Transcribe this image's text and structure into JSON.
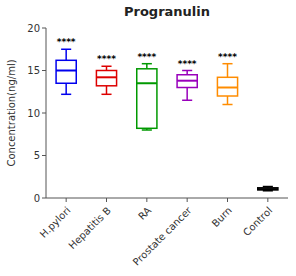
{
  "chart_data": {
    "type": "box",
    "title": "Progranulin",
    "ylabel": "Concentration(ng/ml)",
    "categories": [
      "H.pylori",
      "Hepatitis B",
      "RA",
      "Prostate cancer",
      "Burn",
      "Control"
    ],
    "colors": [
      "#0000EE",
      "#DD0000",
      "#009900",
      "#9900BB",
      "#FF8C00",
      "#000000"
    ],
    "box_data": [
      {
        "whislo": 12.2,
        "q1": 13.5,
        "med": 15.0,
        "q3": 16.2,
        "whishi": 17.5
      },
      {
        "whislo": 12.2,
        "q1": 13.2,
        "med": 14.2,
        "q3": 15.0,
        "whishi": 15.5
      },
      {
        "whislo": 8.0,
        "q1": 8.2,
        "med": 13.5,
        "q3": 15.2,
        "whishi": 15.8
      },
      {
        "whislo": 11.5,
        "q1": 13.0,
        "med": 13.8,
        "q3": 14.5,
        "whishi": 15.0
      },
      {
        "whislo": 11.0,
        "q1": 12.0,
        "med": 13.0,
        "q3": 14.2,
        "whishi": 15.8
      },
      {
        "whislo": 0.85,
        "q1": 0.95,
        "med": 1.05,
        "q3": 1.2,
        "whishi": 1.35
      }
    ],
    "annotations": [
      "****",
      "****",
      "****",
      "****",
      "****",
      null
    ],
    "ylim": [
      0,
      20
    ],
    "yticks": [
      0,
      5,
      10,
      15,
      20
    ],
    "grid": false
  }
}
